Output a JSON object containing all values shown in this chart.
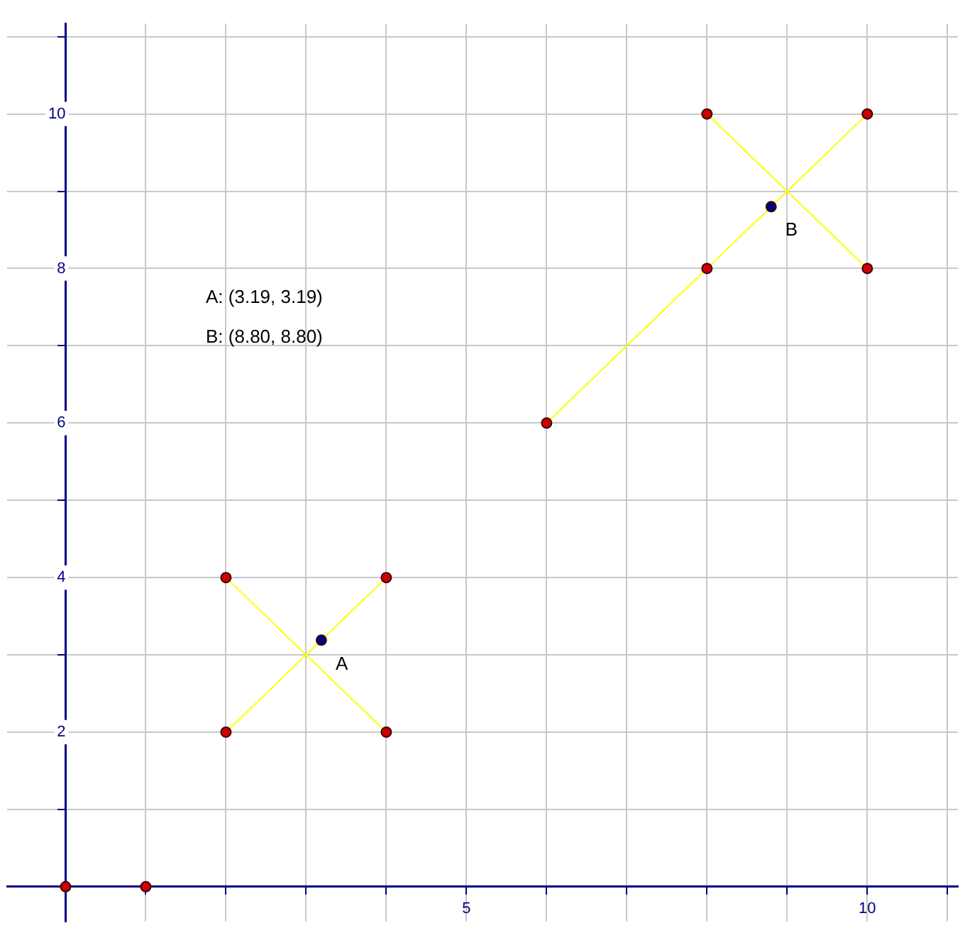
{
  "chart_data": {
    "type": "scatter",
    "marker": "circle",
    "grid": true,
    "legend": false,
    "xlim": [
      -0.73,
      11.13
    ],
    "ylim": [
      -0.45,
      11.17
    ],
    "xticks": [
      {
        "value": 0,
        "label": null
      },
      {
        "value": 1,
        "label": null
      },
      {
        "value": 2,
        "label": null
      },
      {
        "value": 3,
        "label": null
      },
      {
        "value": 4,
        "label": null
      },
      5,
      {
        "value": 6,
        "label": null
      },
      {
        "value": 7,
        "label": null
      },
      {
        "value": 8,
        "label": null
      },
      {
        "value": 9,
        "label": null
      },
      10,
      {
        "value": 11,
        "label": null
      }
    ],
    "yticks": [
      {
        "value": 0,
        "label": null
      },
      {
        "value": 1,
        "label": null
      },
      2,
      {
        "value": 3,
        "label": null
      },
      4,
      {
        "value": 5,
        "label": null
      },
      6,
      {
        "value": 7,
        "label": null
      },
      8,
      {
        "value": 9,
        "label": null
      },
      10,
      {
        "value": 11,
        "label": null
      }
    ],
    "series": [
      {
        "color": "#cc0000",
        "x": [
          0,
          1,
          2,
          2,
          4,
          4,
          6,
          8,
          8,
          10,
          10
        ],
        "values": [
          0,
          0,
          2,
          4,
          4,
          2,
          6,
          8,
          10,
          10,
          8
        ]
      },
      {
        "color": "#000080",
        "x": [
          3.19,
          8.8
        ],
        "values": [
          3.19,
          8.8
        ]
      },
      {
        "type": "line",
        "color": "#ffff00",
        "marker": "none",
        "x": [
          2,
          4
        ],
        "values": [
          2,
          4
        ]
      },
      {
        "type": "line",
        "color": "#ffff00",
        "marker": "none",
        "x": [
          2,
          4
        ],
        "values": [
          4,
          2
        ]
      },
      {
        "type": "line",
        "color": "#ffff00",
        "marker": "none",
        "x": [
          6,
          10
        ],
        "values": [
          6,
          10
        ]
      },
      {
        "type": "line",
        "color": "#ffff00",
        "marker": "none",
        "x": [
          8,
          10
        ],
        "values": [
          10,
          8
        ]
      }
    ],
    "annotations": [
      "A: (3.19, 3.19)",
      "B: (8.80, 8.80)",
      {
        "text": "A",
        "x": 3.19,
        "y": 3.19
      },
      {
        "text": "B",
        "x": 8.8,
        "y": 8.8
      }
    ]
  }
}
